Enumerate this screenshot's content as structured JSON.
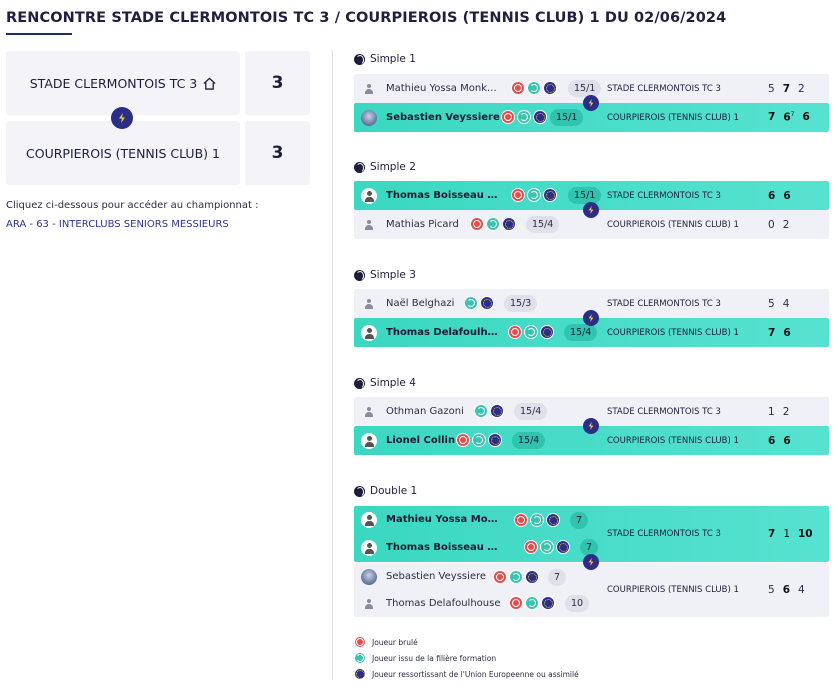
{
  "title": "RENCONTRE STADE CLERMONTOIS TC 3 / COURPIEROIS (TENNIS CLUB) 1 DU 02/06/2024",
  "home": {
    "name": "STADE CLERMONTOIS TC 3",
    "score": "3"
  },
  "away": {
    "name": "COURPIEROIS (TENNIS CLUB) 1",
    "score": "3"
  },
  "championship_hint": "Cliquez ci-dessous pour accéder au championnat :",
  "championship_link": "ARA - 63 - INTERCLUBS SENIORS MESSIEURS",
  "matches": [
    {
      "label": "Simple 1",
      "rows": [
        {
          "name": "Mathieu Yossa Monka...",
          "rank": "15/1",
          "team": "STADE CLERMONTOIS TC 3",
          "scores": [
            "5",
            "7",
            "2"
          ]
        },
        {
          "name": "Sebastien Veyssiere",
          "rank": "15/1",
          "team": "COURPIEROIS (TENNIS CLUB) 1",
          "scores": [
            "7",
            "6",
            "6"
          ],
          "tiebreak": "7"
        }
      ]
    },
    {
      "label": "Simple 2",
      "rows": [
        {
          "name": "Thomas Boisseau De...",
          "rank": "15/1",
          "team": "STADE CLERMONTOIS TC 3",
          "scores": [
            "6",
            "6"
          ]
        },
        {
          "name": "Mathias Picard",
          "rank": "15/4",
          "team": "COURPIEROIS (TENNIS CLUB) 1",
          "scores": [
            "0",
            "2"
          ]
        }
      ]
    },
    {
      "label": "Simple 3",
      "rows": [
        {
          "name": "Naël Belghazi",
          "rank": "15/3",
          "team": "STADE CLERMONTOIS TC 3",
          "scores": [
            "5",
            "4"
          ]
        },
        {
          "name": "Thomas Delafoulhou...",
          "rank": "15/4",
          "team": "COURPIEROIS (TENNIS CLUB) 1",
          "scores": [
            "7",
            "6"
          ]
        }
      ]
    },
    {
      "label": "Simple 4",
      "rows": [
        {
          "name": "Othman Gazoni",
          "rank": "15/4",
          "team": "STADE CLERMONTOIS TC 3",
          "scores": [
            "1",
            "2"
          ]
        },
        {
          "name": "Lionel Collin",
          "rank": "15/4",
          "team": "COURPIEROIS (TENNIS CLUB) 1",
          "scores": [
            "6",
            "6"
          ]
        }
      ]
    },
    {
      "label": "Double 1",
      "team_home": "STADE CLERMONTOIS TC 3",
      "team_away": "COURPIEROIS (TENNIS CLUB) 1",
      "scores_home": [
        "7",
        "1",
        "10"
      ],
      "scores_away": [
        "5",
        "6",
        "4"
      ],
      "rows": [
        {
          "name": "Mathieu Yossa Monkam",
          "rank": "7"
        },
        {
          "name": "Thomas Boisseau Denje...",
          "rank": "7"
        },
        {
          "name": "Sebastien Veyssiere",
          "rank": "7"
        },
        {
          "name": "Thomas Delafoulhouse",
          "rank": "10"
        }
      ]
    }
  ],
  "legend": [
    {
      "icon": "burned-player-icon",
      "label": "Joueur brulé"
    },
    {
      "icon": "training-path-icon",
      "label": "Joueur issu de la filière formation"
    },
    {
      "icon": "eu-icon",
      "label": "Joueur ressortissant de l'Union Europeenne ou assimilé"
    }
  ],
  "colors": {
    "accent": "#2a2e86",
    "win": "#3ad7c1",
    "burned": "#e34d4d",
    "training": "#3ac4b0"
  }
}
